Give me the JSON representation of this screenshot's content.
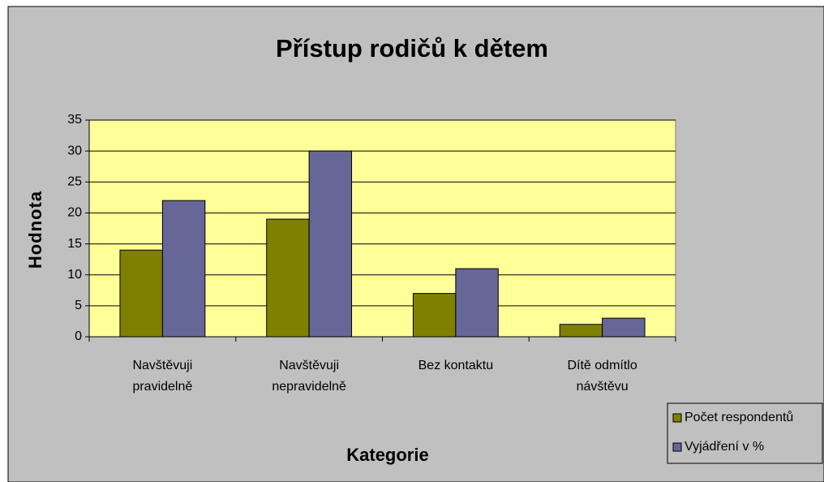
{
  "chart_data": {
    "type": "bar",
    "title": "Přístup rodičů k dětem",
    "x_label": "Kategorie",
    "y_label": "Hodnota",
    "categories": [
      "Navštěvuji\npravidelně",
      "Navštěvuji\nnepravidelně",
      "Bez kontaktu",
      "Dítě odmítlo\nnávštěvu"
    ],
    "series": [
      {
        "name": "Počet respondentů",
        "color": "#808000",
        "values": [
          14,
          19,
          7,
          2
        ]
      },
      {
        "name": "Vyjádření v %",
        "color": "#666699",
        "values": [
          22,
          30,
          11,
          3
        ]
      }
    ],
    "ylim": [
      0,
      35
    ],
    "yticks": [
      0,
      5,
      10,
      15,
      20,
      25,
      30,
      35
    ],
    "grid": true,
    "legend": "bottom-right"
  }
}
